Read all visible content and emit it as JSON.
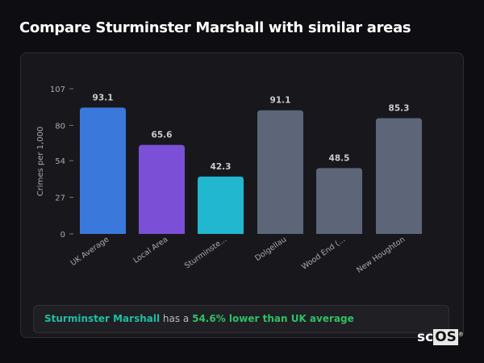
{
  "title": "Compare Sturminster Marshall with similar areas",
  "summary": {
    "area": "Sturminster Marshall",
    "connector": " has a ",
    "stat": "54.6% lower than UK average"
  },
  "logo": {
    "text_a": "sc",
    "text_b": "OS",
    "mark": "®"
  },
  "chart_data": {
    "type": "bar",
    "title": "",
    "xlabel": "",
    "ylabel": "Crimes per 1,000",
    "ylim": [
      0,
      107
    ],
    "yticks": [
      0,
      27,
      54,
      80,
      107
    ],
    "grid": false,
    "categories": [
      "UK Average",
      "Local Area",
      "Sturminste...",
      "Dolgellau",
      "Wood End (...",
      "New Houghton"
    ],
    "values": [
      93.1,
      65.6,
      42.3,
      91.1,
      48.5,
      85.3
    ],
    "value_labels": [
      "93.1",
      "65.6",
      "42.3",
      "91.1",
      "48.5",
      "85.3"
    ],
    "colors": [
      "#3a78dc",
      "#7b50d6",
      "#21b8cf",
      "#5c6678",
      "#5c6678",
      "#5c6678"
    ]
  }
}
